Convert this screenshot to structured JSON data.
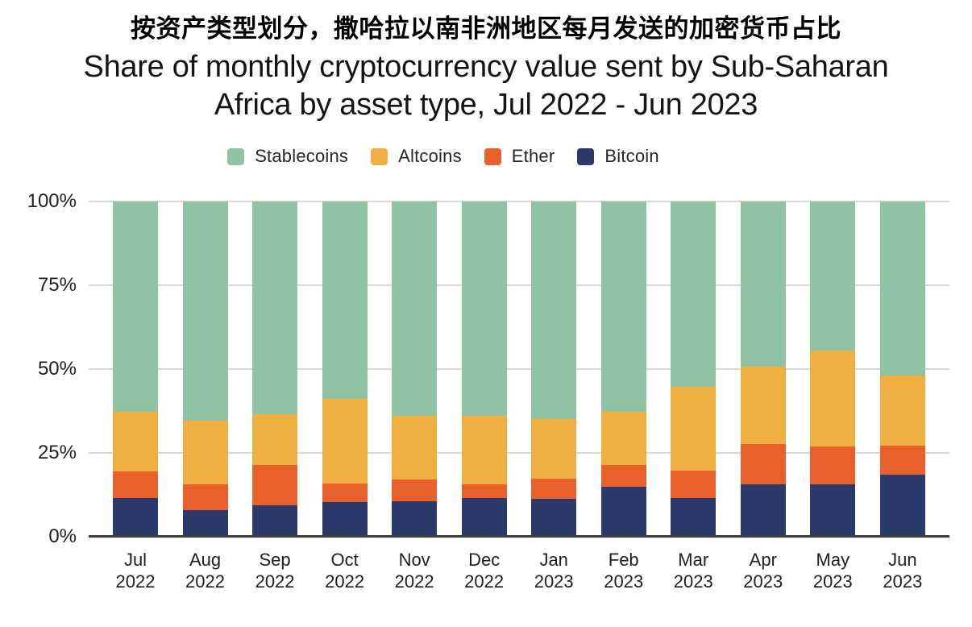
{
  "page": {
    "title_zh": "按资产类型划分，撒哈拉以南非洲地区每月发送的加密货币占比",
    "title_en_line1": "Share of monthly cryptocurrency value sent by Sub-Saharan",
    "title_en_line2": "Africa by asset type, Jul 2022 - Jun 2023"
  },
  "colors": {
    "stablecoins": "#8FC3A4",
    "altcoins": "#F0AF41",
    "ether": "#E8602C",
    "bitcoin": "#2C3A6B",
    "gridline": "#D9D9D9",
    "axis_line": "#3C3C3C",
    "text": "#1A1A1A"
  },
  "chart_data": {
    "type": "bar",
    "stacked": true,
    "percent": true,
    "title": "Share of monthly cryptocurrency value sent by Sub-Saharan Africa by asset type, Jul 2022 - Jun 2023",
    "title_zh": "按资产类型划分，撒哈拉以南非洲地区每月发送的加密货币占比",
    "legend_position": "top",
    "legend_order": [
      "Stablecoins",
      "Altcoins",
      "Ether",
      "Bitcoin"
    ],
    "categories": [
      "Jul 2022",
      "Aug 2022",
      "Sep 2022",
      "Oct 2022",
      "Nov 2022",
      "Dec 2022",
      "Jan 2023",
      "Feb 2023",
      "Mar 2023",
      "Apr 2023",
      "May 2023",
      "Jun 2023"
    ],
    "series": [
      {
        "name": "Bitcoin",
        "color": "#2C3A6B",
        "values": [
          11.5,
          8.0,
          9.3,
          10.3,
          10.5,
          11.5,
          11.3,
          14.9,
          11.5,
          15.6,
          15.7,
          18.5
        ]
      },
      {
        "name": "Ether",
        "color": "#E8602C",
        "values": [
          7.9,
          7.7,
          12.0,
          5.5,
          6.6,
          4.2,
          6.0,
          6.4,
          8.1,
          12.1,
          11.3,
          8.7
        ]
      },
      {
        "name": "Altcoins",
        "color": "#F0AF41",
        "values": [
          17.8,
          18.8,
          15.2,
          25.3,
          19.0,
          20.4,
          17.7,
          15.9,
          25.1,
          23.0,
          28.6,
          20.8
        ]
      },
      {
        "name": "Stablecoins",
        "color": "#8FC3A4",
        "values": [
          62.8,
          65.5,
          63.5,
          58.9,
          63.9,
          63.9,
          65.0,
          62.8,
          55.3,
          49.3,
          44.4,
          52.0
        ]
      }
    ],
    "y_axis": {
      "ticks": [
        "0%",
        "25%",
        "50%",
        "75%",
        "100%"
      ],
      "min": 0,
      "max": 100,
      "grid": true
    },
    "xlabel": "",
    "ylabel": ""
  }
}
